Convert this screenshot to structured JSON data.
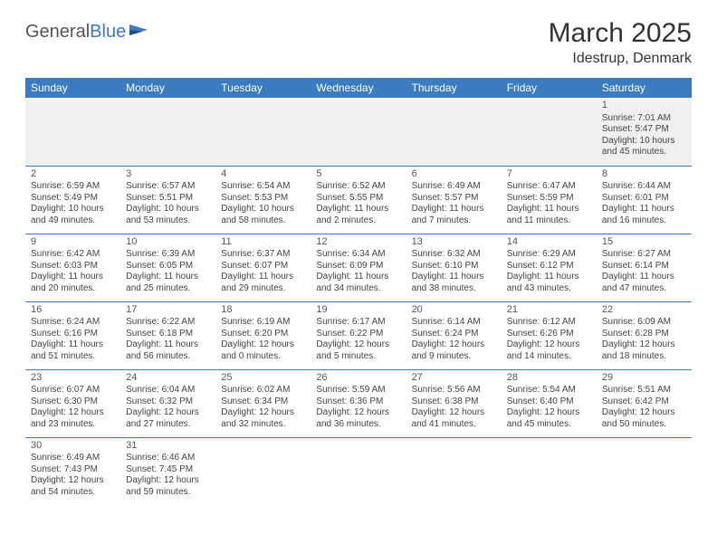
{
  "logo": {
    "part1": "General",
    "part2": "Blue"
  },
  "title": "March 2025",
  "location": "Idestrup, Denmark",
  "weekdays": [
    "Sunday",
    "Monday",
    "Tuesday",
    "Wednesday",
    "Thursday",
    "Friday",
    "Saturday"
  ],
  "colors": {
    "header_bg": "#3b7bbf",
    "header_text": "#ffffff",
    "cell_border": "#3b7bbf",
    "first_row_bg": "#f0f0f0"
  },
  "weeks": [
    [
      null,
      null,
      null,
      null,
      null,
      null,
      {
        "n": "1",
        "sunrise": "Sunrise: 7:01 AM",
        "sunset": "Sunset: 5:47 PM",
        "daylight": "Daylight: 10 hours and 45 minutes."
      }
    ],
    [
      {
        "n": "2",
        "sunrise": "Sunrise: 6:59 AM",
        "sunset": "Sunset: 5:49 PM",
        "daylight": "Daylight: 10 hours and 49 minutes."
      },
      {
        "n": "3",
        "sunrise": "Sunrise: 6:57 AM",
        "sunset": "Sunset: 5:51 PM",
        "daylight": "Daylight: 10 hours and 53 minutes."
      },
      {
        "n": "4",
        "sunrise": "Sunrise: 6:54 AM",
        "sunset": "Sunset: 5:53 PM",
        "daylight": "Daylight: 10 hours and 58 minutes."
      },
      {
        "n": "5",
        "sunrise": "Sunrise: 6:52 AM",
        "sunset": "Sunset: 5:55 PM",
        "daylight": "Daylight: 11 hours and 2 minutes."
      },
      {
        "n": "6",
        "sunrise": "Sunrise: 6:49 AM",
        "sunset": "Sunset: 5:57 PM",
        "daylight": "Daylight: 11 hours and 7 minutes."
      },
      {
        "n": "7",
        "sunrise": "Sunrise: 6:47 AM",
        "sunset": "Sunset: 5:59 PM",
        "daylight": "Daylight: 11 hours and 11 minutes."
      },
      {
        "n": "8",
        "sunrise": "Sunrise: 6:44 AM",
        "sunset": "Sunset: 6:01 PM",
        "daylight": "Daylight: 11 hours and 16 minutes."
      }
    ],
    [
      {
        "n": "9",
        "sunrise": "Sunrise: 6:42 AM",
        "sunset": "Sunset: 6:03 PM",
        "daylight": "Daylight: 11 hours and 20 minutes."
      },
      {
        "n": "10",
        "sunrise": "Sunrise: 6:39 AM",
        "sunset": "Sunset: 6:05 PM",
        "daylight": "Daylight: 11 hours and 25 minutes."
      },
      {
        "n": "11",
        "sunrise": "Sunrise: 6:37 AM",
        "sunset": "Sunset: 6:07 PM",
        "daylight": "Daylight: 11 hours and 29 minutes."
      },
      {
        "n": "12",
        "sunrise": "Sunrise: 6:34 AM",
        "sunset": "Sunset: 6:09 PM",
        "daylight": "Daylight: 11 hours and 34 minutes."
      },
      {
        "n": "13",
        "sunrise": "Sunrise: 6:32 AM",
        "sunset": "Sunset: 6:10 PM",
        "daylight": "Daylight: 11 hours and 38 minutes."
      },
      {
        "n": "14",
        "sunrise": "Sunrise: 6:29 AM",
        "sunset": "Sunset: 6:12 PM",
        "daylight": "Daylight: 11 hours and 43 minutes."
      },
      {
        "n": "15",
        "sunrise": "Sunrise: 6:27 AM",
        "sunset": "Sunset: 6:14 PM",
        "daylight": "Daylight: 11 hours and 47 minutes."
      }
    ],
    [
      {
        "n": "16",
        "sunrise": "Sunrise: 6:24 AM",
        "sunset": "Sunset: 6:16 PM",
        "daylight": "Daylight: 11 hours and 51 minutes."
      },
      {
        "n": "17",
        "sunrise": "Sunrise: 6:22 AM",
        "sunset": "Sunset: 6:18 PM",
        "daylight": "Daylight: 11 hours and 56 minutes."
      },
      {
        "n": "18",
        "sunrise": "Sunrise: 6:19 AM",
        "sunset": "Sunset: 6:20 PM",
        "daylight": "Daylight: 12 hours and 0 minutes."
      },
      {
        "n": "19",
        "sunrise": "Sunrise: 6:17 AM",
        "sunset": "Sunset: 6:22 PM",
        "daylight": "Daylight: 12 hours and 5 minutes."
      },
      {
        "n": "20",
        "sunrise": "Sunrise: 6:14 AM",
        "sunset": "Sunset: 6:24 PM",
        "daylight": "Daylight: 12 hours and 9 minutes."
      },
      {
        "n": "21",
        "sunrise": "Sunrise: 6:12 AM",
        "sunset": "Sunset: 6:26 PM",
        "daylight": "Daylight: 12 hours and 14 minutes."
      },
      {
        "n": "22",
        "sunrise": "Sunrise: 6:09 AM",
        "sunset": "Sunset: 6:28 PM",
        "daylight": "Daylight: 12 hours and 18 minutes."
      }
    ],
    [
      {
        "n": "23",
        "sunrise": "Sunrise: 6:07 AM",
        "sunset": "Sunset: 6:30 PM",
        "daylight": "Daylight: 12 hours and 23 minutes."
      },
      {
        "n": "24",
        "sunrise": "Sunrise: 6:04 AM",
        "sunset": "Sunset: 6:32 PM",
        "daylight": "Daylight: 12 hours and 27 minutes."
      },
      {
        "n": "25",
        "sunrise": "Sunrise: 6:02 AM",
        "sunset": "Sunset: 6:34 PM",
        "daylight": "Daylight: 12 hours and 32 minutes."
      },
      {
        "n": "26",
        "sunrise": "Sunrise: 5:59 AM",
        "sunset": "Sunset: 6:36 PM",
        "daylight": "Daylight: 12 hours and 36 minutes."
      },
      {
        "n": "27",
        "sunrise": "Sunrise: 5:56 AM",
        "sunset": "Sunset: 6:38 PM",
        "daylight": "Daylight: 12 hours and 41 minutes."
      },
      {
        "n": "28",
        "sunrise": "Sunrise: 5:54 AM",
        "sunset": "Sunset: 6:40 PM",
        "daylight": "Daylight: 12 hours and 45 minutes."
      },
      {
        "n": "29",
        "sunrise": "Sunrise: 5:51 AM",
        "sunset": "Sunset: 6:42 PM",
        "daylight": "Daylight: 12 hours and 50 minutes."
      }
    ],
    [
      {
        "n": "30",
        "sunrise": "Sunrise: 6:49 AM",
        "sunset": "Sunset: 7:43 PM",
        "daylight": "Daylight: 12 hours and 54 minutes."
      },
      {
        "n": "31",
        "sunrise": "Sunrise: 6:46 AM",
        "sunset": "Sunset: 7:45 PM",
        "daylight": "Daylight: 12 hours and 59 minutes."
      },
      null,
      null,
      null,
      null,
      null
    ]
  ]
}
